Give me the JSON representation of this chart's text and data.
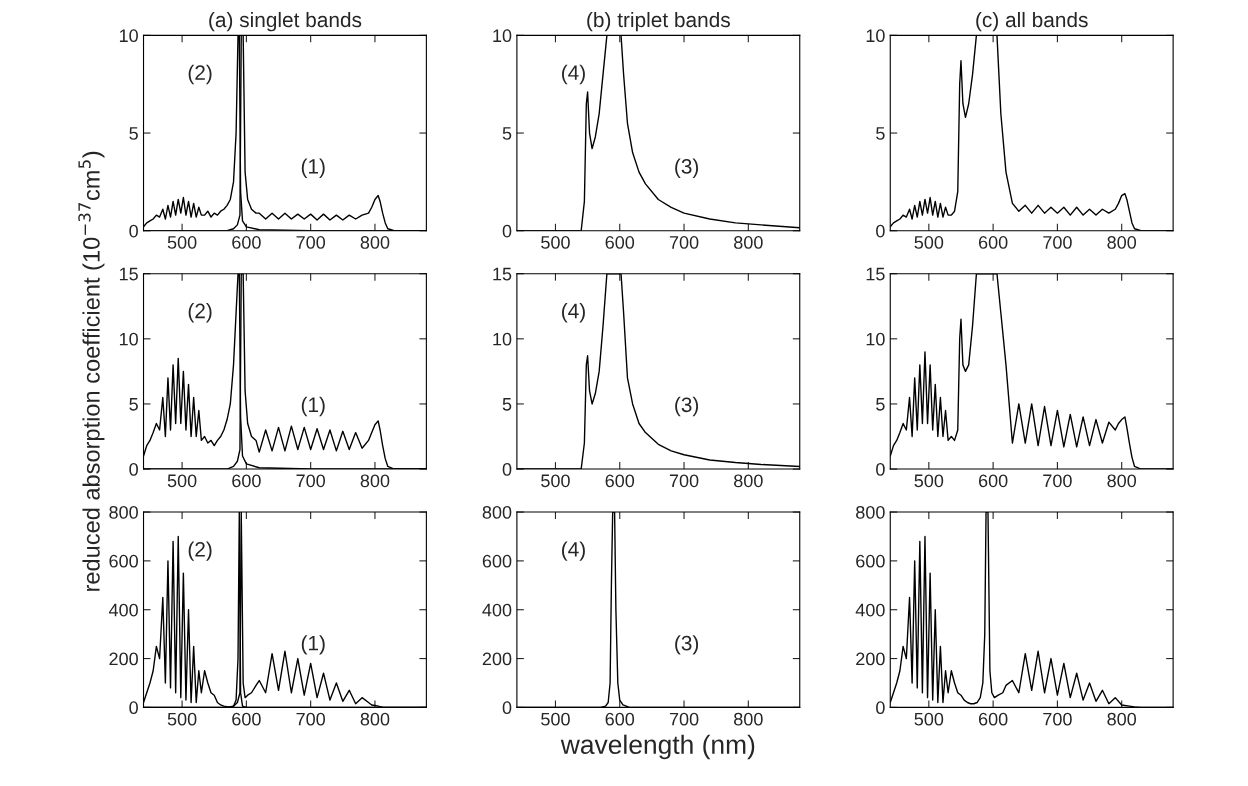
{
  "chart_data": [
    {
      "type": "line",
      "title": "(a) singlet bands",
      "xlim": [
        440,
        880
      ],
      "xticks": [
        500,
        600,
        700,
        800
      ],
      "ylim": [
        0,
        10
      ],
      "yticks": [
        0,
        5,
        10
      ],
      "series": [
        {
          "color": "#000000",
          "x": [
            440,
            570,
            580,
            586,
            590,
            592,
            595,
            598,
            602,
            608,
            615,
            620,
            630,
            640,
            650,
            660,
            670,
            680,
            690,
            700,
            710,
            720,
            730,
            740,
            750,
            760,
            770,
            780,
            790,
            795,
            800,
            805,
            808,
            812,
            816,
            820,
            830,
            880
          ],
          "values": [
            0,
            0,
            0.1,
            0.3,
            0.8,
            10,
            10,
            3,
            1.6,
            1.1,
            0.9,
            0.9,
            0.6,
            0.9,
            0.6,
            0.9,
            0.6,
            0.85,
            0.6,
            0.85,
            0.55,
            0.85,
            0.55,
            0.8,
            0.55,
            0.8,
            0.6,
            0.8,
            0.9,
            1.2,
            1.6,
            1.8,
            1.5,
            0.9,
            0.4,
            0.1,
            0,
            0
          ]
        },
        {
          "color": "#000000",
          "x": [
            440,
            445,
            450,
            455,
            460,
            465,
            470,
            474,
            478,
            482,
            486,
            490,
            494,
            498,
            502,
            506,
            510,
            514,
            518,
            522,
            526,
            530,
            535,
            540,
            545,
            550,
            555,
            560,
            565,
            570,
            575,
            580,
            584,
            587,
            589,
            591,
            594,
            600,
            620,
            700,
            880
          ],
          "values": [
            0.2,
            0.4,
            0.5,
            0.6,
            0.8,
            0.7,
            1.1,
            0.6,
            1.3,
            0.7,
            1.5,
            0.8,
            1.6,
            0.9,
            1.7,
            0.8,
            1.5,
            0.7,
            1.4,
            0.7,
            1.2,
            0.8,
            0.8,
            1.0,
            0.7,
            0.9,
            0.8,
            1.0,
            1.1,
            1.3,
            1.6,
            2.5,
            5,
            10,
            10,
            2,
            0.5,
            0.2,
            0.05,
            0,
            0
          ]
        }
      ],
      "annotations": [
        "(2)",
        "(1)"
      ]
    },
    {
      "type": "line",
      "title": "(b) triplet bands",
      "xlim": [
        440,
        880
      ],
      "xticks": [
        500,
        600,
        700,
        800
      ],
      "ylim": [
        0,
        10
      ],
      "yticks": [
        0,
        5,
        10
      ],
      "series": [
        {
          "color": "#000000",
          "x": [
            440,
            540,
            545,
            548,
            550,
            553,
            557,
            562,
            568,
            574,
            580,
            584,
            598,
            602,
            606,
            612,
            620,
            630,
            640,
            660,
            680,
            700,
            740,
            780,
            820,
            880
          ],
          "values": [
            0,
            0,
            1.5,
            6.5,
            7.1,
            5,
            4.2,
            4.8,
            6,
            8,
            10,
            10,
            10,
            10,
            8,
            5.5,
            4,
            3,
            2.4,
            1.6,
            1.2,
            0.9,
            0.6,
            0.4,
            0.3,
            0.15
          ]
        }
      ],
      "annotations": [
        "(4)",
        "(3)"
      ]
    },
    {
      "type": "line",
      "title": "(c) all bands",
      "xlim": [
        440,
        880
      ],
      "xticks": [
        500,
        600,
        700,
        800
      ],
      "ylim": [
        0,
        10
      ],
      "yticks": [
        0,
        5,
        10
      ],
      "series": [
        {
          "color": "#000000",
          "x": [
            440,
            445,
            450,
            455,
            460,
            465,
            470,
            474,
            478,
            482,
            486,
            490,
            494,
            498,
            502,
            506,
            510,
            514,
            518,
            522,
            526,
            530,
            535,
            540,
            545,
            548,
            550,
            553,
            557,
            562,
            568,
            574,
            580,
            606,
            612,
            620,
            630,
            640,
            650,
            660,
            670,
            680,
            690,
            700,
            710,
            720,
            730,
            740,
            750,
            760,
            770,
            780,
            790,
            795,
            800,
            805,
            808,
            812,
            816,
            820,
            830,
            880
          ],
          "values": [
            0.2,
            0.4,
            0.5,
            0.6,
            0.8,
            0.7,
            1.1,
            0.6,
            1.3,
            0.7,
            1.5,
            0.8,
            1.6,
            0.9,
            1.7,
            0.8,
            1.5,
            0.7,
            1.4,
            0.7,
            1.2,
            0.8,
            0.8,
            1.0,
            2.0,
            7.5,
            8.7,
            6.5,
            5.8,
            6.5,
            8,
            10,
            10,
            10,
            6,
            3,
            1.4,
            1.0,
            1.3,
            0.9,
            1.3,
            0.9,
            1.2,
            0.9,
            1.2,
            0.8,
            1.2,
            0.8,
            1.1,
            0.8,
            1.1,
            0.9,
            1.1,
            1.4,
            1.8,
            1.9,
            1.6,
            1.0,
            0.4,
            0.1,
            0,
            0
          ]
        }
      ]
    },
    {
      "type": "line",
      "xlim": [
        440,
        880
      ],
      "xticks": [
        500,
        600,
        700,
        800
      ],
      "ylim": [
        0,
        15
      ],
      "yticks": [
        0,
        5,
        10,
        15
      ],
      "ylabel": "reduced absorption coefficient (10$^{−37}$cm$^{5}$)",
      "series": [
        {
          "color": "#000000",
          "x": [
            440,
            570,
            580,
            586,
            590,
            592,
            595,
            598,
            602,
            608,
            615,
            620,
            630,
            640,
            650,
            660,
            670,
            680,
            690,
            700,
            710,
            720,
            730,
            740,
            750,
            760,
            770,
            780,
            790,
            795,
            800,
            805,
            808,
            812,
            816,
            820,
            830,
            880
          ],
          "values": [
            0,
            0,
            0.2,
            0.6,
            1.5,
            15,
            15,
            6,
            3.5,
            2.5,
            2.2,
            1.3,
            3,
            1.4,
            3.2,
            1.4,
            3.3,
            1.5,
            3.2,
            1.5,
            3.1,
            1.5,
            3,
            1.4,
            2.9,
            1.5,
            2.8,
            1.6,
            2.2,
            2.8,
            3.4,
            3.7,
            3,
            1.8,
            0.8,
            0.2,
            0,
            0
          ]
        },
        {
          "color": "#000000",
          "x": [
            440,
            445,
            450,
            455,
            460,
            465,
            470,
            474,
            478,
            482,
            486,
            490,
            494,
            498,
            502,
            506,
            510,
            514,
            518,
            522,
            526,
            530,
            535,
            540,
            545,
            550,
            555,
            560,
            565,
            570,
            575,
            580,
            584,
            587,
            589,
            591,
            594,
            600,
            620,
            700,
            880
          ],
          "values": [
            1,
            1.8,
            2.2,
            2.8,
            3.5,
            3,
            5.5,
            2.5,
            7,
            3,
            8,
            3.5,
            8.5,
            3.5,
            7.5,
            3,
            6.5,
            2.5,
            5.5,
            2.5,
            4.5,
            2.2,
            2.5,
            2,
            2.2,
            1.8,
            2.2,
            2.5,
            3,
            3.8,
            5,
            8,
            12,
            15,
            15,
            4,
            1,
            0.4,
            0.1,
            0,
            0
          ]
        }
      ],
      "annotations": [
        "(2)",
        "(1)"
      ]
    },
    {
      "type": "line",
      "xlim": [
        440,
        880
      ],
      "xticks": [
        500,
        600,
        700,
        800
      ],
      "ylim": [
        0,
        15
      ],
      "yticks": [
        0,
        5,
        10,
        15
      ],
      "series": [
        {
          "color": "#000000",
          "x": [
            440,
            540,
            545,
            548,
            550,
            553,
            557,
            562,
            568,
            574,
            580,
            584,
            598,
            602,
            606,
            612,
            620,
            630,
            640,
            660,
            680,
            700,
            740,
            780,
            820,
            880
          ],
          "values": [
            0,
            0,
            2,
            8,
            8.7,
            6,
            5,
            5.8,
            7.5,
            11,
            15,
            15,
            15,
            15,
            12,
            7,
            5,
            3.5,
            2.8,
            1.9,
            1.4,
            1.1,
            0.7,
            0.5,
            0.35,
            0.2
          ]
        }
      ],
      "annotations": [
        "(4)",
        "(3)"
      ]
    },
    {
      "type": "line",
      "xlim": [
        440,
        880
      ],
      "xticks": [
        500,
        600,
        700,
        800
      ],
      "ylim": [
        0,
        15
      ],
      "yticks": [
        0,
        5,
        10,
        15
      ],
      "series": [
        {
          "color": "#000000",
          "x": [
            440,
            445,
            450,
            455,
            460,
            465,
            470,
            474,
            478,
            482,
            486,
            490,
            494,
            498,
            502,
            506,
            510,
            514,
            518,
            522,
            526,
            530,
            535,
            540,
            545,
            548,
            550,
            553,
            557,
            562,
            568,
            574,
            580,
            606,
            612,
            620,
            630,
            640,
            650,
            660,
            670,
            680,
            690,
            700,
            710,
            720,
            730,
            740,
            750,
            760,
            770,
            780,
            790,
            795,
            800,
            805,
            808,
            812,
            816,
            820,
            830,
            880
          ],
          "values": [
            1,
            1.8,
            2.2,
            2.8,
            3.5,
            3,
            5.5,
            2.5,
            7,
            3,
            8,
            3.5,
            9,
            3.5,
            8,
            3,
            6.5,
            2.5,
            5.5,
            2.5,
            4.5,
            2.2,
            2.5,
            2.2,
            3,
            10,
            11.5,
            8,
            7.5,
            8,
            11,
            15,
            15,
            15,
            12,
            8,
            2,
            5,
            2,
            5,
            1.8,
            4.8,
            1.8,
            4.5,
            1.7,
            4.2,
            1.7,
            4,
            1.8,
            3.8,
            2,
            3.6,
            3,
            3.5,
            3.8,
            4,
            3.2,
            2,
            0.9,
            0.2,
            0,
            0
          ]
        }
      ]
    },
    {
      "type": "line",
      "xlim": [
        440,
        880
      ],
      "xticks": [
        500,
        600,
        700,
        800
      ],
      "ylim": [
        0,
        800
      ],
      "yticks": [
        0,
        200,
        400,
        600,
        800
      ],
      "series": [
        {
          "color": "#000000",
          "x": [
            440,
            570,
            580,
            586,
            590,
            592,
            595,
            598,
            602,
            608,
            615,
            620,
            630,
            640,
            650,
            660,
            670,
            680,
            690,
            700,
            710,
            720,
            730,
            740,
            750,
            760,
            770,
            780,
            790,
            795,
            800,
            805,
            808,
            812,
            816,
            820,
            830,
            880
          ],
          "values": [
            0,
            0,
            5,
            20,
            60,
            800,
            100,
            40,
            50,
            60,
            90,
            110,
            60,
            220,
            70,
            230,
            60,
            200,
            50,
            180,
            40,
            140,
            30,
            100,
            25,
            70,
            15,
            40,
            20,
            10,
            8,
            5,
            3,
            1,
            0,
            0,
            0,
            0
          ]
        },
        {
          "color": "#000000",
          "x": [
            440,
            445,
            450,
            455,
            460,
            465,
            470,
            474,
            478,
            482,
            486,
            490,
            494,
            498,
            502,
            506,
            510,
            514,
            518,
            522,
            526,
            530,
            535,
            540,
            545,
            550,
            555,
            560,
            565,
            570,
            575,
            580,
            584,
            587,
            589,
            591,
            594,
            600,
            620,
            700,
            880
          ],
          "values": [
            20,
            60,
            100,
            150,
            250,
            200,
            450,
            100,
            600,
            80,
            680,
            60,
            700,
            40,
            550,
            30,
            400,
            20,
            250,
            20,
            150,
            60,
            150,
            100,
            60,
            50,
            20,
            10,
            5,
            3,
            2,
            5,
            30,
            200,
            800,
            60,
            5,
            0,
            0,
            0,
            0
          ]
        }
      ],
      "annotations": [
        "(2)",
        "(1)"
      ]
    },
    {
      "type": "line",
      "xlim": [
        440,
        880
      ],
      "xticks": [
        500,
        600,
        700,
        800
      ],
      "ylim": [
        0,
        800
      ],
      "yticks": [
        0,
        200,
        400,
        600,
        800
      ],
      "xlabel": "wavelength (nm)",
      "series": [
        {
          "color": "#000000",
          "x": [
            440,
            570,
            578,
            582,
            585,
            587,
            589,
            592,
            594,
            597,
            600,
            605,
            615,
            880
          ],
          "values": [
            0,
            0,
            5,
            20,
            100,
            500,
            800,
            800,
            400,
            100,
            30,
            10,
            0,
            0
          ]
        }
      ],
      "annotations": [
        "(4)",
        "(3)"
      ]
    },
    {
      "type": "line",
      "xlim": [
        440,
        880
      ],
      "xticks": [
        500,
        600,
        700,
        800
      ],
      "ylim": [
        0,
        800
      ],
      "yticks": [
        0,
        200,
        400,
        600,
        800
      ],
      "series": [
        {
          "color": "#000000",
          "x": [
            440,
            445,
            450,
            455,
            460,
            465,
            470,
            474,
            478,
            482,
            486,
            490,
            494,
            498,
            502,
            506,
            510,
            514,
            518,
            522,
            526,
            530,
            535,
            540,
            545,
            550,
            555,
            560,
            565,
            570,
            575,
            580,
            584,
            587,
            589,
            592,
            595,
            598,
            602,
            608,
            615,
            620,
            630,
            640,
            650,
            660,
            670,
            680,
            690,
            700,
            710,
            720,
            730,
            740,
            750,
            760,
            770,
            780,
            790,
            800,
            812,
            820,
            830,
            880
          ],
          "values": [
            20,
            60,
            100,
            150,
            250,
            200,
            450,
            100,
            600,
            80,
            680,
            60,
            700,
            40,
            550,
            30,
            400,
            20,
            250,
            20,
            150,
            60,
            150,
            100,
            60,
            50,
            30,
            20,
            15,
            15,
            20,
            40,
            100,
            300,
            800,
            800,
            150,
            60,
            40,
            50,
            60,
            90,
            110,
            60,
            220,
            70,
            230,
            60,
            200,
            50,
            180,
            40,
            140,
            30,
            100,
            25,
            70,
            15,
            40,
            10,
            5,
            2,
            0,
            0
          ]
        }
      ]
    }
  ]
}
